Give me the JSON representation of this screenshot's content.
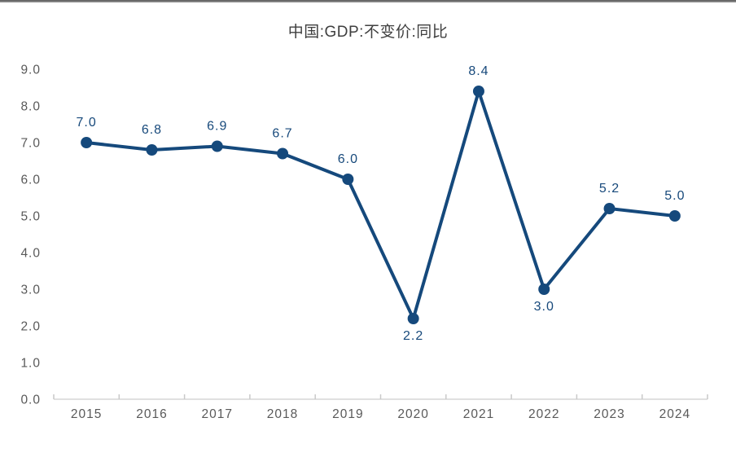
{
  "page": {
    "title": "中国:GDP:不变价:同比"
  },
  "chart_data": {
    "type": "line",
    "title": "中国:GDP:不变价:同比",
    "categories": [
      "2015",
      "2016",
      "2017",
      "2018",
      "2019",
      "2020",
      "2021",
      "2022",
      "2023",
      "2024"
    ],
    "values": [
      7.0,
      6.8,
      6.9,
      6.7,
      6.0,
      2.2,
      8.4,
      3.0,
      5.2,
      5.0
    ],
    "data_labels": [
      "7.0",
      "6.8",
      "6.9",
      "6.7",
      "6.0",
      "2.2",
      "8.4",
      "3.0",
      "5.2",
      "5.0"
    ],
    "labels_below_point": [
      "2020",
      "2022"
    ],
    "y_tick_labels": [
      "0.0",
      "1.0",
      "2.0",
      "3.0",
      "4.0",
      "5.0",
      "6.0",
      "7.0",
      "8.0",
      "9.0"
    ],
    "ylim": [
      0.0,
      9.0
    ],
    "y_step": 1.0,
    "grid": false,
    "legend_position": "none",
    "colors": {
      "line": "#15497C",
      "marker": "#15497C",
      "data_label_text": "#17497B",
      "axis_line": "#d6d6d6",
      "axis_tick": "#c9c9c9",
      "tick_text": "#595959",
      "title_text": "#3f3f3f"
    }
  }
}
